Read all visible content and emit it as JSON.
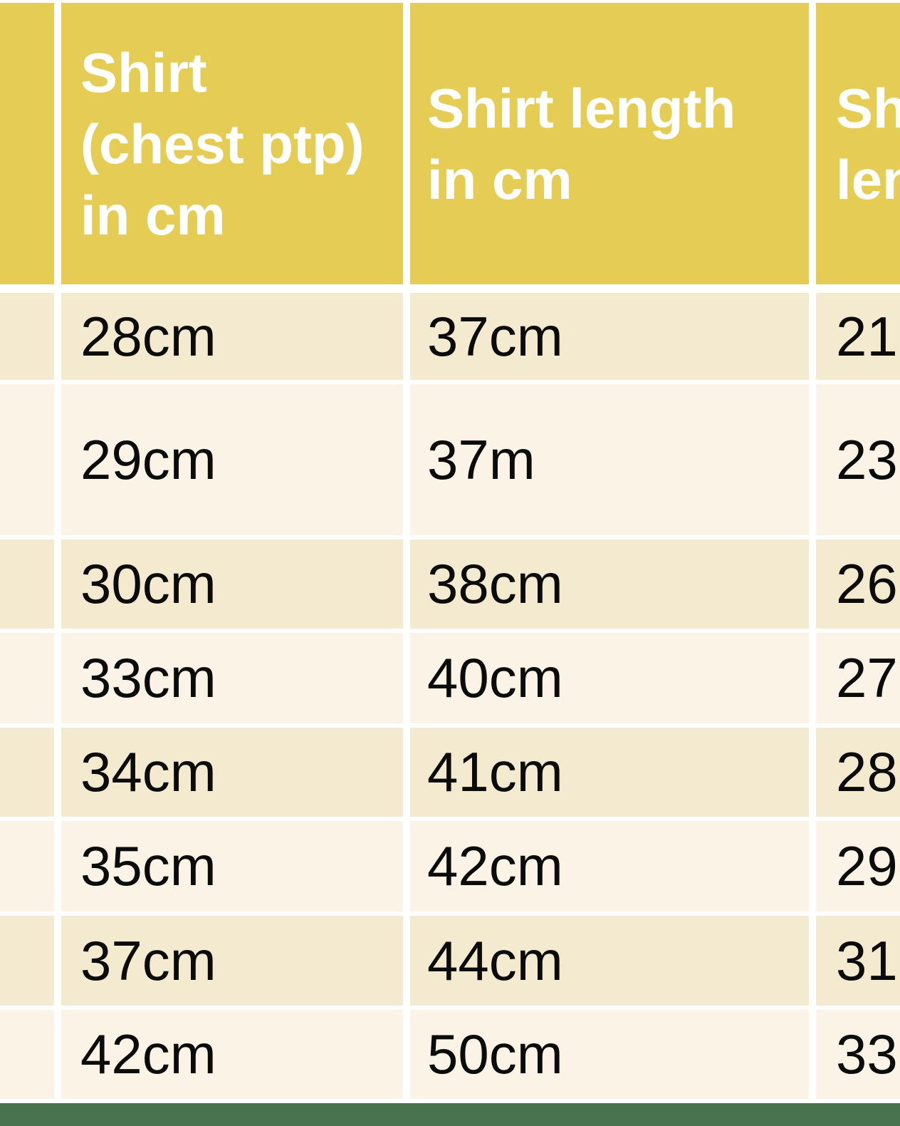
{
  "size_chart": {
    "headers": {
      "label_column": "",
      "chest": {
        "line1": "Shirt",
        "line2": "(chest ptp)",
        "line3": "in cm"
      },
      "length": {
        "line1": "Shirt length",
        "line2": "in cm"
      },
      "third_truncated": {
        "line1": "Sh",
        "line2": "len"
      }
    },
    "rows": [
      {
        "chest": "28cm",
        "length": "37cm",
        "third": "21"
      },
      {
        "chest": "29cm",
        "length": "37m",
        "third": "23"
      },
      {
        "chest": "30cm",
        "length": "38cm",
        "third": "26"
      },
      {
        "chest": "33cm",
        "length": "40cm",
        "third": "27"
      },
      {
        "chest": "34cm",
        "length": "41cm",
        "third": "28"
      },
      {
        "chest": "35cm",
        "length": "42cm",
        "third": "29"
      },
      {
        "chest": "37cm",
        "length": "44cm",
        "third": "31"
      },
      {
        "chest": "42cm",
        "length": "50cm",
        "third": "33"
      }
    ],
    "colors": {
      "header_bg": "#e5cc55",
      "row_dark_bg": "#f3ead0",
      "row_light_bg": "#fbf4e6",
      "separator": "#ffffff",
      "footer_bar": "#49724f",
      "header_text": "#ffffff",
      "cell_text": "#0b0b0b"
    }
  }
}
